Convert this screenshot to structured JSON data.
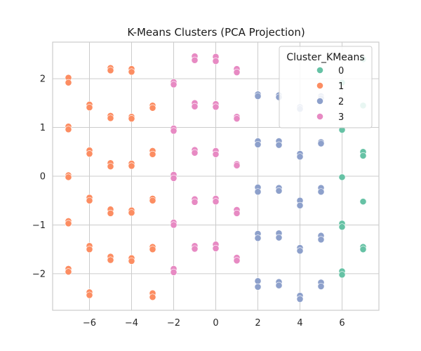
{
  "chart_data": {
    "type": "scatter",
    "title": "K-Means Clusters (PCA Projection)",
    "xlabel": "",
    "ylabel": "",
    "xlim": [
      -7.75,
      7.75
    ],
    "ylim": [
      -2.75,
      2.75
    ],
    "xticks": [
      -6,
      -4,
      -2,
      0,
      2,
      4,
      6
    ],
    "yticks": [
      -2,
      -1,
      0,
      1,
      2
    ],
    "xtick_labels": [
      "−6",
      "−4",
      "−2",
      "0",
      "2",
      "4",
      "6"
    ],
    "ytick_labels": [
      "−2",
      "−1",
      "0",
      "1",
      "2"
    ],
    "grid": true,
    "legend": {
      "title": "Cluster_KMeans",
      "position": "top-right"
    },
    "series": [
      {
        "name": "0",
        "color": "#66c2a5",
        "points": [
          [
            7,
            2.4
          ],
          [
            6,
            1.92
          ],
          [
            7,
            1.45
          ],
          [
            6,
            0.95
          ],
          [
            7,
            0.5
          ],
          [
            7,
            0.42
          ],
          [
            6,
            -0.02
          ],
          [
            7,
            -0.52
          ],
          [
            6,
            -0.97
          ],
          [
            6,
            -1.04
          ],
          [
            7,
            -1.45
          ],
          [
            7,
            -1.5
          ],
          [
            6,
            -1.95
          ],
          [
            6,
            -2.02
          ]
        ]
      },
      {
        "name": "1",
        "color": "#fc8d62",
        "points": [
          [
            -7,
            2.02
          ],
          [
            -7,
            1.92
          ],
          [
            -5,
            2.22
          ],
          [
            -5,
            2.17
          ],
          [
            -4,
            2.2
          ],
          [
            -4,
            2.14
          ],
          [
            -6,
            1.47
          ],
          [
            -6,
            1.41
          ],
          [
            -3,
            1.45
          ],
          [
            -3,
            1.4
          ],
          [
            -5,
            1.24
          ],
          [
            -5,
            1.19
          ],
          [
            -4,
            1.22
          ],
          [
            -4,
            1.18
          ],
          [
            -7,
            1.02
          ],
          [
            -7,
            0.96
          ],
          [
            -6,
            0.53
          ],
          [
            -6,
            0.46
          ],
          [
            -3,
            0.52
          ],
          [
            -3,
            0.45
          ],
          [
            -5,
            0.27
          ],
          [
            -5,
            0.2
          ],
          [
            -4,
            0.26
          ],
          [
            -4,
            0.21
          ],
          [
            -7,
            0.02
          ],
          [
            -7,
            -0.02
          ],
          [
            -6,
            -0.44
          ],
          [
            -6,
            -0.5
          ],
          [
            -3,
            -0.46
          ],
          [
            -3,
            -0.5
          ],
          [
            -5,
            -0.68
          ],
          [
            -5,
            -0.76
          ],
          [
            -4,
            -0.7
          ],
          [
            -4,
            -0.75
          ],
          [
            -7,
            -0.92
          ],
          [
            -7,
            -0.97
          ],
          [
            -6,
            -1.43
          ],
          [
            -6,
            -1.5
          ],
          [
            -3,
            -1.45
          ],
          [
            -3,
            -1.5
          ],
          [
            -5,
            -1.65
          ],
          [
            -5,
            -1.72
          ],
          [
            -4,
            -1.68
          ],
          [
            -4,
            -1.74
          ],
          [
            -7,
            -1.9
          ],
          [
            -7,
            -1.96
          ],
          [
            -6,
            -2.38
          ],
          [
            -6,
            -2.44
          ],
          [
            -3,
            -2.4
          ],
          [
            -3,
            -2.48
          ]
        ]
      },
      {
        "name": "2",
        "color": "#8da0cb",
        "points": [
          [
            2,
            1.68
          ],
          [
            2,
            1.64
          ],
          [
            3,
            1.66
          ],
          [
            3,
            1.62
          ],
          [
            4,
            1.42
          ],
          [
            4,
            1.38
          ],
          [
            5,
            1.64
          ],
          [
            5,
            1.6
          ],
          [
            2,
            0.72
          ],
          [
            2,
            0.65
          ],
          [
            3,
            0.72
          ],
          [
            3,
            0.64
          ],
          [
            4,
            0.46
          ],
          [
            4,
            0.4
          ],
          [
            5,
            0.7
          ],
          [
            5,
            0.67
          ],
          [
            2,
            -0.23
          ],
          [
            2,
            -0.32
          ],
          [
            3,
            -0.24
          ],
          [
            3,
            -0.3
          ],
          [
            4,
            -0.5
          ],
          [
            4,
            -0.6
          ],
          [
            5,
            -0.24
          ],
          [
            5,
            -0.32
          ],
          [
            2,
            -1.18
          ],
          [
            2,
            -1.27
          ],
          [
            3,
            -1.17
          ],
          [
            3,
            -1.26
          ],
          [
            4,
            -1.47
          ],
          [
            4,
            -1.53
          ],
          [
            5,
            -1.22
          ],
          [
            5,
            -1.3
          ],
          [
            2,
            -2.15
          ],
          [
            2,
            -2.27
          ],
          [
            3,
            -2.17
          ],
          [
            3,
            -2.24
          ],
          [
            4,
            -2.45
          ],
          [
            4,
            -2.52
          ],
          [
            5,
            -2.18
          ],
          [
            5,
            -2.26
          ]
        ]
      },
      {
        "name": "3",
        "color": "#e78ac3",
        "points": [
          [
            -1,
            2.46
          ],
          [
            -1,
            2.38
          ],
          [
            0,
            2.45
          ],
          [
            0,
            2.36
          ],
          [
            1,
            2.2
          ],
          [
            1,
            2.13
          ],
          [
            -2,
            1.93
          ],
          [
            -2,
            1.88
          ],
          [
            -1,
            1.5
          ],
          [
            -1,
            1.43
          ],
          [
            0,
            1.48
          ],
          [
            0,
            1.42
          ],
          [
            1,
            1.22
          ],
          [
            1,
            1.18
          ],
          [
            -2,
            0.98
          ],
          [
            -2,
            0.93
          ],
          [
            -1,
            0.54
          ],
          [
            -1,
            0.48
          ],
          [
            0,
            0.52
          ],
          [
            0,
            0.45
          ],
          [
            1,
            0.25
          ],
          [
            1,
            0.22
          ],
          [
            -2,
            0.03
          ],
          [
            -2,
            -0.04
          ],
          [
            -1,
            -0.47
          ],
          [
            -1,
            -0.53
          ],
          [
            0,
            -0.46
          ],
          [
            0,
            -0.52
          ],
          [
            1,
            -0.69
          ],
          [
            1,
            -0.76
          ],
          [
            -2,
            -0.95
          ],
          [
            -2,
            -1.0
          ],
          [
            -1,
            -1.43
          ],
          [
            -1,
            -1.49
          ],
          [
            0,
            -1.4
          ],
          [
            0,
            -1.48
          ],
          [
            1,
            -1.67
          ],
          [
            1,
            -1.73
          ],
          [
            -2,
            -1.9
          ],
          [
            -2,
            -1.97
          ]
        ]
      }
    ]
  }
}
